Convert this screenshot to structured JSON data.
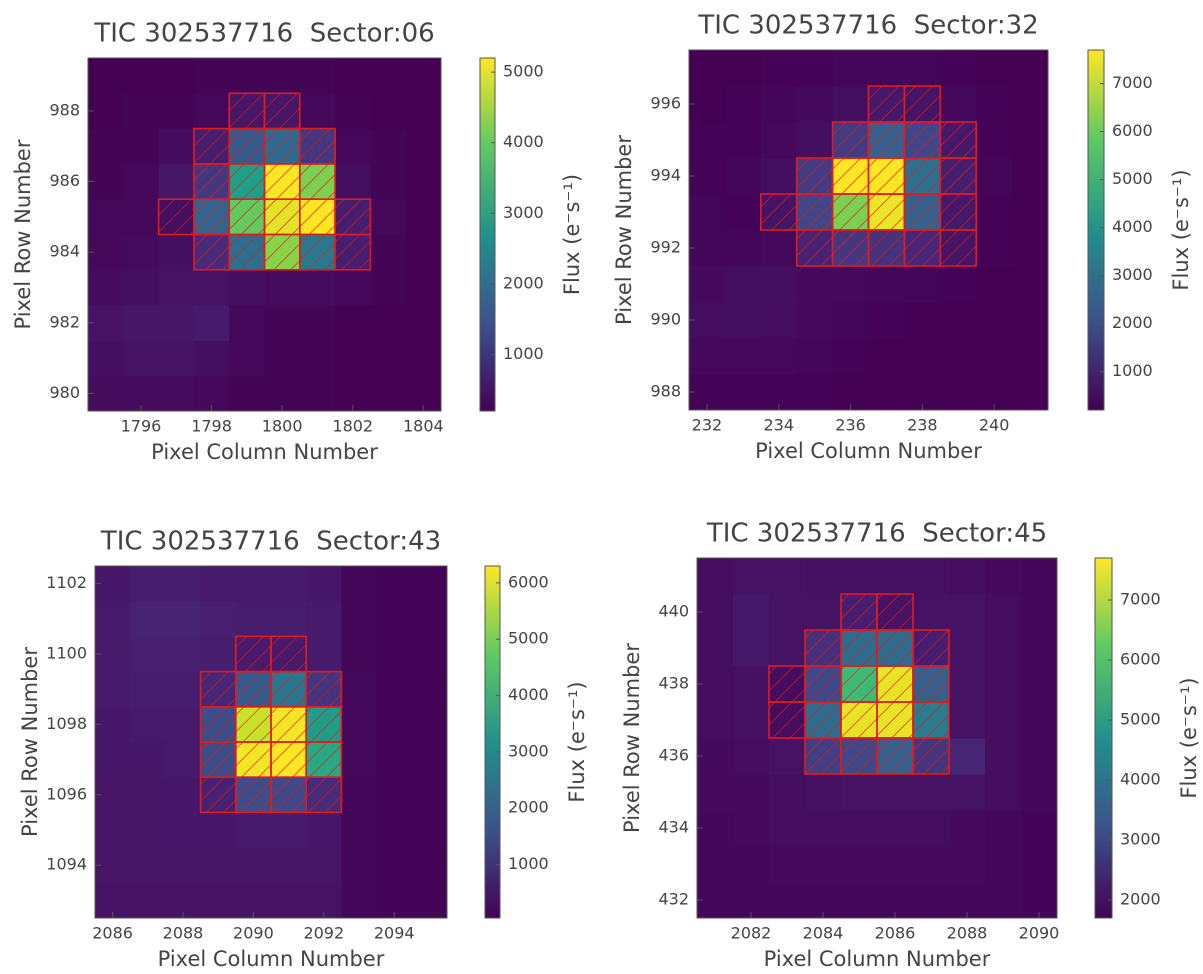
{
  "chart_data": [
    {
      "type": "heatmap",
      "title": "TIC 302537716  Sector:06",
      "xlabel": "Pixel Column Number",
      "ylabel": "Pixel Row Number",
      "colorbar_label": "Flux (e⁻s⁻¹)",
      "colormap": "viridis",
      "x": [
        1795,
        1796,
        1797,
        1798,
        1799,
        1800,
        1801,
        1802,
        1803,
        1804
      ],
      "y": [
        980,
        981,
        982,
        983,
        984,
        985,
        986,
        987,
        988,
        989
      ],
      "z": [
        [
          350,
          350,
          350,
          300,
          250,
          250,
          250,
          200,
          200,
          200
        ],
        [
          400,
          450,
          450,
          400,
          300,
          250,
          250,
          200,
          200,
          200
        ],
        [
          450,
          500,
          500,
          550,
          300,
          250,
          250,
          200,
          200,
          200
        ],
        [
          350,
          400,
          450,
          450,
          400,
          350,
          350,
          300,
          250,
          200
        ],
        [
          300,
          350,
          400,
          800,
          2000,
          4300,
          2200,
          600,
          250,
          200
        ],
        [
          300,
          300,
          400,
          1800,
          4000,
          5000,
          5200,
          600,
          300,
          200
        ],
        [
          250,
          300,
          500,
          1000,
          3000,
          5200,
          4200,
          400,
          250,
          200
        ],
        [
          250,
          250,
          350,
          600,
          1600,
          1900,
          1000,
          300,
          250,
          200
        ],
        [
          200,
          250,
          250,
          300,
          500,
          500,
          300,
          250,
          200,
          200
        ],
        [
          200,
          200,
          200,
          250,
          250,
          250,
          250,
          200,
          200,
          150
        ]
      ],
      "xlim": [
        1794.5,
        1804.5
      ],
      "ylim": [
        979.5,
        989.5
      ],
      "xticks": [
        1796,
        1798,
        1800,
        1802,
        1804
      ],
      "yticks": [
        980,
        982,
        984,
        986,
        988
      ],
      "clim": [
        200,
        5200
      ],
      "cticks": [
        1000,
        2000,
        3000,
        4000,
        5000
      ],
      "aperture_color": "#e31a1c",
      "aperture": [
        [
          1799,
          988
        ],
        [
          1800,
          988
        ],
        [
          1798,
          987
        ],
        [
          1799,
          987
        ],
        [
          1800,
          987
        ],
        [
          1801,
          987
        ],
        [
          1798,
          986
        ],
        [
          1799,
          986
        ],
        [
          1800,
          986
        ],
        [
          1801,
          986
        ],
        [
          1797,
          985
        ],
        [
          1798,
          985
        ],
        [
          1799,
          985
        ],
        [
          1800,
          985
        ],
        [
          1801,
          985
        ],
        [
          1802,
          985
        ],
        [
          1798,
          984
        ],
        [
          1799,
          984
        ],
        [
          1800,
          984
        ],
        [
          1801,
          984
        ],
        [
          1802,
          984
        ]
      ]
    },
    {
      "type": "heatmap",
      "title": "TIC 302537716  Sector:32",
      "xlabel": "Pixel Column Number",
      "ylabel": "Pixel Row Number",
      "colorbar_label": "Flux (e⁻s⁻¹)",
      "colormap": "viridis",
      "x": [
        232,
        233,
        234,
        235,
        236,
        237,
        238,
        239,
        240,
        241
      ],
      "y": [
        988,
        989,
        990,
        991,
        992,
        993,
        994,
        995,
        996,
        997
      ],
      "z": [
        [
          250,
          250,
          250,
          250,
          200,
          200,
          200,
          200,
          200,
          200
        ],
        [
          350,
          350,
          350,
          300,
          250,
          200,
          200,
          200,
          200,
          200
        ],
        [
          450,
          500,
          450,
          350,
          300,
          250,
          200,
          200,
          200,
          200
        ],
        [
          400,
          500,
          500,
          400,
          350,
          300,
          300,
          250,
          200,
          200
        ],
        [
          300,
          300,
          350,
          900,
          1400,
          1300,
          1000,
          600,
          250,
          200
        ],
        [
          300,
          250,
          600,
          1800,
          6200,
          7500,
          2500,
          700,
          250,
          200
        ],
        [
          250,
          300,
          500,
          1500,
          7700,
          7700,
          3000,
          800,
          300,
          200
        ],
        [
          250,
          250,
          350,
          500,
          1500,
          2500,
          1800,
          700,
          250,
          200
        ],
        [
          200,
          250,
          300,
          400,
          500,
          700,
          600,
          400,
          250,
          200
        ],
        [
          200,
          200,
          250,
          250,
          300,
          300,
          300,
          250,
          200,
          200
        ]
      ],
      "xlim": [
        231.5,
        241.5
      ],
      "ylim": [
        987.5,
        997.5
      ],
      "xticks": [
        232,
        234,
        236,
        238,
        240
      ],
      "yticks": [
        988,
        990,
        992,
        994,
        996
      ],
      "clim": [
        200,
        7700
      ],
      "cticks": [
        1000,
        2000,
        3000,
        4000,
        5000,
        6000,
        7000
      ],
      "aperture_color": "#e31a1c",
      "aperture": [
        [
          237,
          996
        ],
        [
          238,
          996
        ],
        [
          236,
          995
        ],
        [
          237,
          995
        ],
        [
          238,
          995
        ],
        [
          239,
          995
        ],
        [
          235,
          994
        ],
        [
          236,
          994
        ],
        [
          237,
          994
        ],
        [
          238,
          994
        ],
        [
          239,
          994
        ],
        [
          234,
          993
        ],
        [
          235,
          993
        ],
        [
          236,
          993
        ],
        [
          237,
          993
        ],
        [
          238,
          993
        ],
        [
          239,
          993
        ],
        [
          235,
          992
        ],
        [
          236,
          992
        ],
        [
          237,
          992
        ],
        [
          238,
          992
        ],
        [
          239,
          992
        ]
      ]
    },
    {
      "type": "heatmap",
      "title": "TIC 302537716  Sector:43",
      "xlabel": "Pixel Column Number",
      "ylabel": "Pixel Row Number",
      "colorbar_label": "Flux (e⁻s⁻¹)",
      "colormap": "viridis",
      "x": [
        2086,
        2087,
        2088,
        2089,
        2090,
        2091,
        2092,
        2093,
        2094,
        2095
      ],
      "y": [
        1093,
        1094,
        1095,
        1096,
        1097,
        1098,
        1099,
        1100,
        1101,
        1102
      ],
      "z": [
        [
          350,
          350,
          350,
          350,
          350,
          350,
          350,
          150,
          100,
          100
        ],
        [
          400,
          400,
          400,
          400,
          400,
          400,
          400,
          150,
          100,
          100
        ],
        [
          400,
          400,
          450,
          450,
          500,
          500,
          450,
          150,
          100,
          100
        ],
        [
          400,
          400,
          450,
          600,
          1500,
          1400,
          800,
          150,
          100,
          100
        ],
        [
          450,
          450,
          500,
          1500,
          6200,
          6300,
          3800,
          200,
          100,
          100
        ],
        [
          450,
          500,
          500,
          1500,
          5800,
          6200,
          3500,
          200,
          100,
          100
        ],
        [
          500,
          550,
          550,
          700,
          1800,
          2500,
          1000,
          200,
          100,
          100
        ],
        [
          500,
          600,
          600,
          550,
          500,
          500,
          500,
          150,
          100,
          100
        ],
        [
          500,
          650,
          650,
          600,
          550,
          550,
          500,
          150,
          100,
          100
        ],
        [
          450,
          550,
          550,
          500,
          500,
          500,
          450,
          150,
          100,
          100
        ]
      ],
      "xlim": [
        2085.5,
        2095.5
      ],
      "ylim": [
        1092.5,
        1102.5
      ],
      "xticks": [
        2086,
        2088,
        2090,
        2092,
        2094
      ],
      "yticks": [
        1094,
        1096,
        1098,
        1100,
        1102
      ],
      "clim": [
        50,
        6300
      ],
      "cticks": [
        1000,
        2000,
        3000,
        4000,
        5000,
        6000
      ],
      "aperture_color": "#e31a1c",
      "aperture": [
        [
          2090,
          1100
        ],
        [
          2091,
          1100
        ],
        [
          2089,
          1099
        ],
        [
          2090,
          1099
        ],
        [
          2091,
          1099
        ],
        [
          2092,
          1099
        ],
        [
          2089,
          1098
        ],
        [
          2090,
          1098
        ],
        [
          2091,
          1098
        ],
        [
          2092,
          1098
        ],
        [
          2089,
          1097
        ],
        [
          2090,
          1097
        ],
        [
          2091,
          1097
        ],
        [
          2092,
          1097
        ],
        [
          2089,
          1096
        ],
        [
          2090,
          1096
        ],
        [
          2091,
          1096
        ],
        [
          2092,
          1096
        ]
      ]
    },
    {
      "type": "heatmap",
      "title": "TIC 302537716  Sector:45",
      "xlabel": "Pixel Column Number",
      "ylabel": "Pixel Row Number",
      "colorbar_label": "Flux (e⁻s⁻¹)",
      "colormap": "viridis",
      "x": [
        2081,
        2082,
        2083,
        2084,
        2085,
        2086,
        2087,
        2088,
        2089,
        2090
      ],
      "y": [
        432,
        433,
        434,
        435,
        436,
        437,
        438,
        439,
        440,
        441
      ],
      "z": [
        [
          1800,
          1800,
          1800,
          1800,
          1800,
          1800,
          1800,
          1800,
          1800,
          1750
        ],
        [
          1800,
          1800,
          1850,
          1850,
          1850,
          1850,
          1850,
          1850,
          1800,
          1750
        ],
        [
          1800,
          1850,
          1900,
          1900,
          1900,
          1900,
          1900,
          1850,
          1800,
          1750
        ],
        [
          1850,
          1850,
          1900,
          1950,
          2000,
          2000,
          2000,
          2000,
          1900,
          1800
        ],
        [
          1850,
          1900,
          2000,
          2800,
          3000,
          3500,
          2600,
          2300,
          1900,
          1800
        ],
        [
          1900,
          1950,
          1900,
          3800,
          7500,
          7500,
          4200,
          2000,
          1900,
          1800
        ],
        [
          1900,
          1950,
          1900,
          3000,
          5800,
          7500,
          3500,
          2000,
          1900,
          1800
        ],
        [
          1900,
          2100,
          2000,
          2500,
          3800,
          3800,
          2200,
          2000,
          1900,
          1800
        ],
        [
          1900,
          2100,
          2000,
          2000,
          2200,
          2000,
          2000,
          2000,
          1900,
          1800
        ],
        [
          1900,
          2000,
          2000,
          1950,
          1950,
          1950,
          1950,
          1900,
          1850,
          1800
        ]
      ],
      "xlim": [
        2080.5,
        2090.5
      ],
      "ylim": [
        431.5,
        441.5
      ],
      "xticks": [
        2082,
        2084,
        2086,
        2088,
        2090
      ],
      "yticks": [
        432,
        434,
        436,
        438,
        440
      ],
      "clim": [
        1700,
        7700
      ],
      "cticks": [
        2000,
        3000,
        4000,
        5000,
        6000,
        7000
      ],
      "aperture_color": "#e31a1c",
      "aperture": [
        [
          2085,
          440
        ],
        [
          2086,
          440
        ],
        [
          2084,
          439
        ],
        [
          2085,
          439
        ],
        [
          2086,
          439
        ],
        [
          2087,
          439
        ],
        [
          2083,
          438
        ],
        [
          2084,
          438
        ],
        [
          2085,
          438
        ],
        [
          2086,
          438
        ],
        [
          2087,
          438
        ],
        [
          2083,
          437
        ],
        [
          2084,
          437
        ],
        [
          2085,
          437
        ],
        [
          2086,
          437
        ],
        [
          2087,
          437
        ],
        [
          2084,
          436
        ],
        [
          2085,
          436
        ],
        [
          2086,
          436
        ],
        [
          2087,
          436
        ]
      ]
    }
  ]
}
